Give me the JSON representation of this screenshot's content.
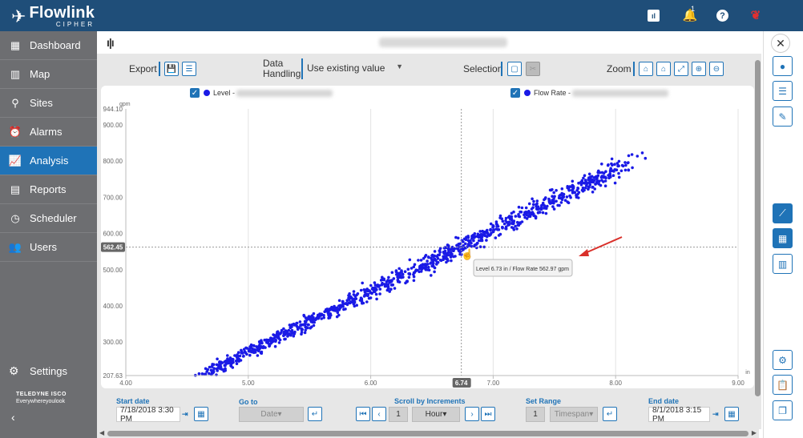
{
  "app": {
    "brand": "Flowlink",
    "brand_sub": "CIPHER",
    "bell_count": "1"
  },
  "icons": {
    "logo": "teledyne-wing-icon",
    "report": "report-icon",
    "bell": "bell-icon",
    "help": "help-icon",
    "flag": "canada-flag-icon"
  },
  "sidebar": {
    "items": [
      {
        "label": "Dashboard",
        "icon": "dashboard-icon",
        "glyph": "▦"
      },
      {
        "label": "Map",
        "icon": "map-icon",
        "glyph": "▥"
      },
      {
        "label": "Sites",
        "icon": "location-pin-icon",
        "glyph": "⚲"
      },
      {
        "label": "Alarms",
        "icon": "alarm-clock-icon",
        "glyph": "⏰"
      },
      {
        "label": "Analysis",
        "icon": "analysis-icon",
        "glyph": "📈"
      },
      {
        "label": "Reports",
        "icon": "reports-icon",
        "glyph": "▤"
      },
      {
        "label": "Scheduler",
        "icon": "clock-icon",
        "glyph": "◷"
      },
      {
        "label": "Users",
        "icon": "users-icon",
        "glyph": "👥"
      }
    ],
    "active": "Analysis",
    "settings_label": "Settings",
    "company_line1": "TELEDYNE ISCO",
    "company_line2": "Everywhereyoulook"
  },
  "toolbar": {
    "export_label": "Export",
    "data_handling_label": "Data Handling",
    "data_handling_value": "Use existing value",
    "selection_label": "Selection",
    "zoom_label": "Zoom"
  },
  "legend": {
    "level_label": "Level -",
    "flow_label": "Flow Rate -"
  },
  "chart_data": {
    "type": "scatter",
    "x_unit": "in",
    "y_unit": "gpm",
    "xlim": [
      4.0,
      9.0
    ],
    "ylim": [
      207.63,
      944.1
    ],
    "x_ticks": [
      "4.00",
      "5.00",
      "6.00",
      "7.00",
      "8.00",
      "9.00"
    ],
    "y_ticks": [
      "300.00",
      "400.00",
      "500.00",
      "600.00",
      "700.00",
      "800.00",
      "900.00"
    ],
    "y_min_label": "207.63",
    "y_max_label": "944.10",
    "series": [
      {
        "color": "#1a1ae6",
        "relation": {
          "slope": 168,
          "intercept": -568,
          "x_range": [
            4.35,
            8.27
          ]
        }
      }
    ],
    "cursor": {
      "x": 6.74,
      "y": 562.45,
      "x_label": "6.74",
      "y_label": "562.45"
    },
    "tooltip": "Level 6.73 in / Flow Rate 562.97 gpm",
    "grid": "vertical"
  },
  "bottom": {
    "start_date_label": "Start date",
    "start_date_value": "7/18/2018 3:30 PM",
    "goto_label": "Go to",
    "goto_value": "Date",
    "scroll_label": "Scroll by Increments",
    "scroll_count": "1",
    "scroll_unit": "Hour",
    "set_range_label": "Set Range",
    "range_count": "1",
    "range_unit": "Timespan",
    "end_date_label": "End date",
    "end_date_value": "8/1/2018 3:15 PM"
  }
}
